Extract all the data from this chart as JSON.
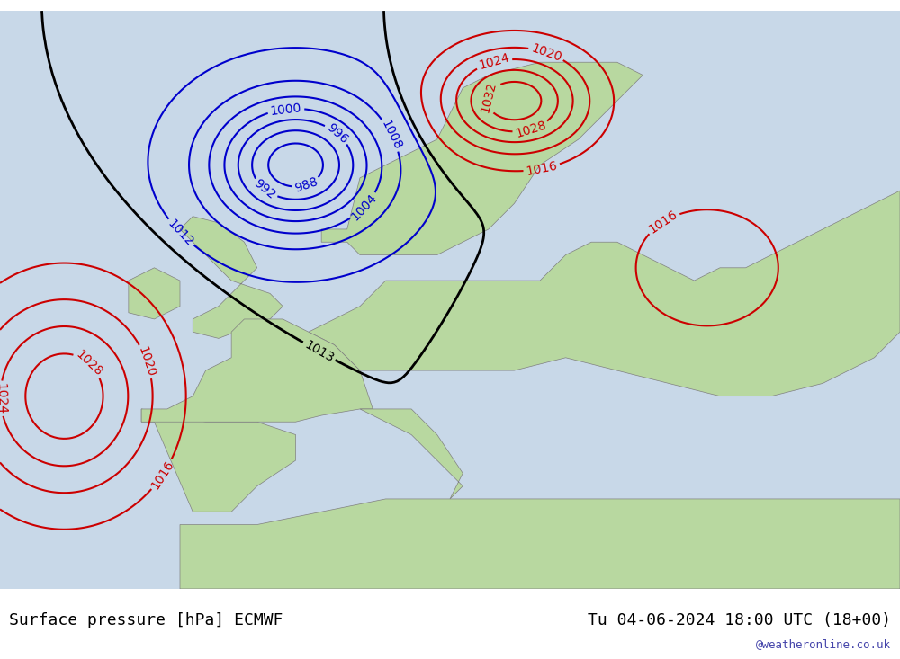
{
  "title_left": "Surface pressure [hPa] ECMWF",
  "title_right": "Tu 04-06-2024 18:00 UTC (18+00)",
  "watermark": "@weatheronline.co.uk",
  "background_ocean": "#d0e8f8",
  "background_land_low": "#c8e6c8",
  "background_land_high": "#e8f5e8",
  "fig_width": 10.0,
  "fig_height": 7.33,
  "font_family": "monospace",
  "bottom_bar_color": "#e0e0e0",
  "isobar_blue_color": "#0000cc",
  "isobar_red_color": "#cc0000",
  "isobar_black_color": "#000000",
  "text_color": "#000000",
  "title_fontsize": 13,
  "label_fontsize": 11,
  "watermark_fontsize": 9
}
